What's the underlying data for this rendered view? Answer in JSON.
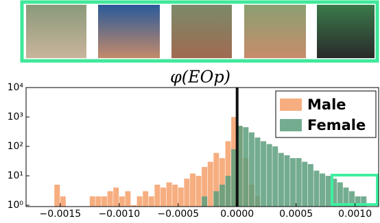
{
  "chart_data": {
    "type": "histogram",
    "title": "φ(EOp)",
    "log_y": true,
    "bins": [
      -0.0016,
      -0.00155,
      -0.0015,
      -0.00145,
      -0.0014,
      -0.00135,
      -0.0013,
      -0.00125,
      -0.0012,
      -0.00115,
      -0.0011,
      -0.00105,
      -0.001,
      -0.00095,
      -0.0009,
      -0.00085,
      -0.0008,
      -0.00075,
      -0.0007,
      -0.00065,
      -0.0006,
      -0.00055,
      -0.0005,
      -0.00045,
      -0.0004,
      -0.00035,
      -0.0003,
      -0.00025,
      -0.0002,
      -0.00015,
      -0.0001,
      -5e-05,
      0,
      5e-05,
      0.0001,
      0.00015,
      0.0002,
      0.00025,
      0.0003,
      0.00035,
      0.0004,
      0.00045,
      0.0005,
      0.00055,
      0.0006,
      0.00065,
      0.0007,
      0.00075,
      0.0008,
      0.00085,
      0.0009,
      0.00095,
      0.001,
      0.00105,
      0.0011,
      0.00115,
      0.0012
    ],
    "series": [
      {
        "name": "Male",
        "color": "#f4a06a",
        "values": [
          0,
          5,
          2,
          0,
          0,
          0,
          0,
          2,
          2,
          2,
          3,
          4,
          2,
          3,
          1,
          2,
          3,
          2,
          5,
          4,
          6,
          5,
          4,
          8,
          12,
          10,
          20,
          30,
          60,
          40,
          150,
          1000,
          500,
          40,
          5,
          2,
          0,
          0,
          0,
          0,
          0,
          0,
          0,
          0,
          0,
          0,
          0,
          0,
          0,
          0,
          0,
          0,
          0,
          0,
          0,
          0
        ]
      },
      {
        "name": "Female",
        "color": "#5c9e7c",
        "values": [
          0,
          0,
          0,
          0,
          0,
          0,
          0,
          0,
          0,
          0,
          0,
          0,
          0,
          0,
          0,
          0,
          0,
          0,
          0,
          0,
          0,
          0,
          0,
          0,
          0,
          0,
          2,
          0,
          3,
          5,
          10,
          80,
          500,
          450,
          300,
          200,
          150,
          120,
          100,
          60,
          50,
          40,
          40,
          30,
          25,
          15,
          12,
          10,
          8,
          6,
          4,
          3,
          2,
          2,
          0,
          0
        ]
      }
    ],
    "reference_line": 0,
    "xlim": [
      -0.00179,
      0.0012
    ],
    "xticks": [
      {
        "value": -0.0015,
        "label": "−0.0015"
      },
      {
        "value": -0.001,
        "label": "−0.0010"
      },
      {
        "value": -0.0005,
        "label": "−0.0005"
      },
      {
        "value": 0,
        "label": "0.0000"
      },
      {
        "value": 0.0005,
        "label": "0.0005"
      },
      {
        "value": 0.001,
        "label": "0.0010"
      }
    ],
    "ylim": [
      0.9,
      10000
    ],
    "yticks": [
      {
        "value": 1,
        "label": "10⁰"
      },
      {
        "value": 10,
        "label": "10¹"
      },
      {
        "value": 100,
        "label": "10²"
      },
      {
        "value": 1000,
        "label": "10³"
      },
      {
        "value": 10000,
        "label": "10⁴"
      }
    ],
    "legend": "upper right"
  }
}
